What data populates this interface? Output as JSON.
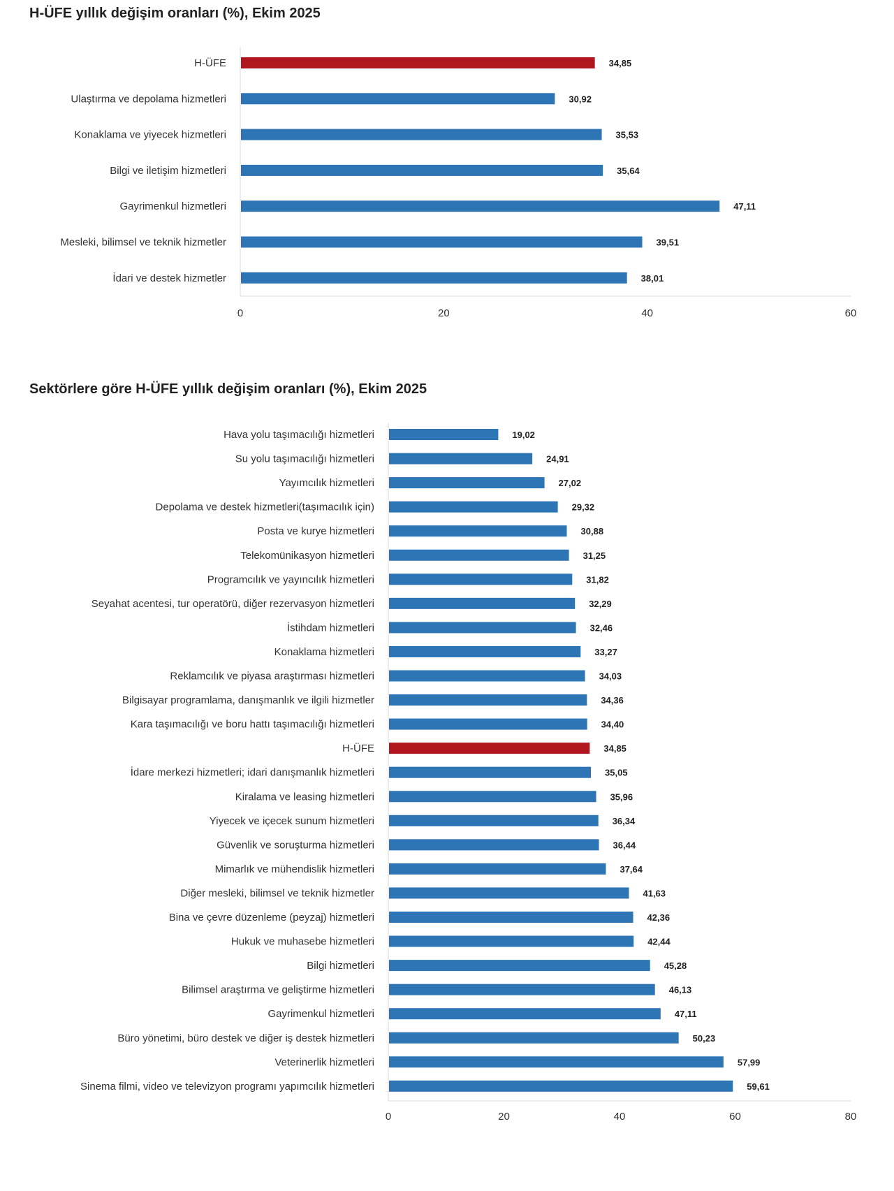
{
  "colors": {
    "bar": "#2e75b6",
    "highlight": "#b0161e",
    "axis": "#d9d9d9"
  },
  "chart_data": [
    {
      "type": "bar",
      "orientation": "horizontal",
      "title": "H-ÜFE yıllık değişim oranları (%), Ekim 2025",
      "xlim": [
        0,
        60
      ],
      "ticks": [
        "0",
        "20",
        "40",
        "60"
      ],
      "tick_values": [
        0,
        20,
        40,
        60
      ],
      "highlight": "H-ÜFE",
      "categories": [
        "H-ÜFE",
        "Ulaştırma ve depolama hizmetleri",
        "Konaklama ve yiyecek hizmetleri",
        "Bilgi ve iletişim hizmetleri",
        "Gayrimenkul hizmetleri",
        "Mesleki, bilimsel ve teknik hizmetler",
        "İdari ve destek hizmetler"
      ],
      "values": [
        34.85,
        30.92,
        35.53,
        35.64,
        47.11,
        39.51,
        38.01
      ],
      "value_labels": [
        "34,85",
        "30,92",
        "35,53",
        "35,64",
        "47,11",
        "39,51",
        "38,01"
      ]
    },
    {
      "type": "bar",
      "orientation": "horizontal",
      "title": "Sektörlere göre H-ÜFE yıllık değişim oranları (%), Ekim 2025",
      "xlim": [
        0,
        80
      ],
      "ticks": [
        "0",
        "20",
        "40",
        "60",
        "80"
      ],
      "tick_values": [
        0,
        20,
        40,
        60,
        80
      ],
      "highlight": "H-ÜFE",
      "categories": [
        "Hava yolu taşımacılığı hizmetleri",
        "Su yolu taşımacılığı hizmetleri",
        "Yayımcılık hizmetleri",
        "Depolama ve destek hizmetleri(taşımacılık için)",
        "Posta ve kurye hizmetleri",
        "Telekomünikasyon hizmetleri",
        "Programcılık ve yayıncılık hizmetleri",
        "Seyahat acentesi, tur operatörü, diğer rezervasyon hizmetleri",
        "İstihdam hizmetleri",
        "Konaklama hizmetleri",
        "Reklamcılık ve piyasa araştırması hizmetleri",
        "Bilgisayar programlama, danışmanlık ve ilgili hizmetler",
        "Kara taşımacılığı ve boru hattı taşımacılığı hizmetleri",
        "H-ÜFE",
        "İdare merkezi hizmetleri; idari danışmanlık hizmetleri",
        "Kiralama ve leasing hizmetleri",
        "Yiyecek ve içecek sunum hizmetleri",
        "Güvenlik ve soruşturma hizmetleri",
        "Mimarlık ve mühendislik hizmetleri",
        "Diğer mesleki, bilimsel ve teknik hizmetler",
        "Bina ve çevre düzenleme (peyzaj) hizmetleri",
        "Hukuk ve muhasebe hizmetleri",
        "Bilgi hizmetleri",
        "Bilimsel araştırma ve geliştirme hizmetleri",
        "Gayrimenkul hizmetleri",
        "Büro yönetimi, büro destek ve diğer iş destek hizmetleri",
        "Veterinerlik hizmetleri",
        "Sinema filmi, video ve televizyon programı yapımcılık hizmetleri"
      ],
      "values": [
        19.02,
        24.91,
        27.02,
        29.32,
        30.88,
        31.25,
        31.82,
        32.29,
        32.46,
        33.27,
        34.03,
        34.36,
        34.4,
        34.85,
        35.05,
        35.96,
        36.34,
        36.44,
        37.64,
        41.63,
        42.36,
        42.44,
        45.28,
        46.13,
        47.11,
        50.23,
        57.99,
        59.61
      ],
      "value_labels": [
        "19,02",
        "24,91",
        "27,02",
        "29,32",
        "30,88",
        "31,25",
        "31,82",
        "32,29",
        "32,46",
        "33,27",
        "34,03",
        "34,36",
        "34,40",
        "34,85",
        "35,05",
        "35,96",
        "36,34",
        "36,44",
        "37,64",
        "41,63",
        "42,36",
        "42,44",
        "45,28",
        "46,13",
        "47,11",
        "50,23",
        "57,99",
        "59,61"
      ]
    }
  ]
}
